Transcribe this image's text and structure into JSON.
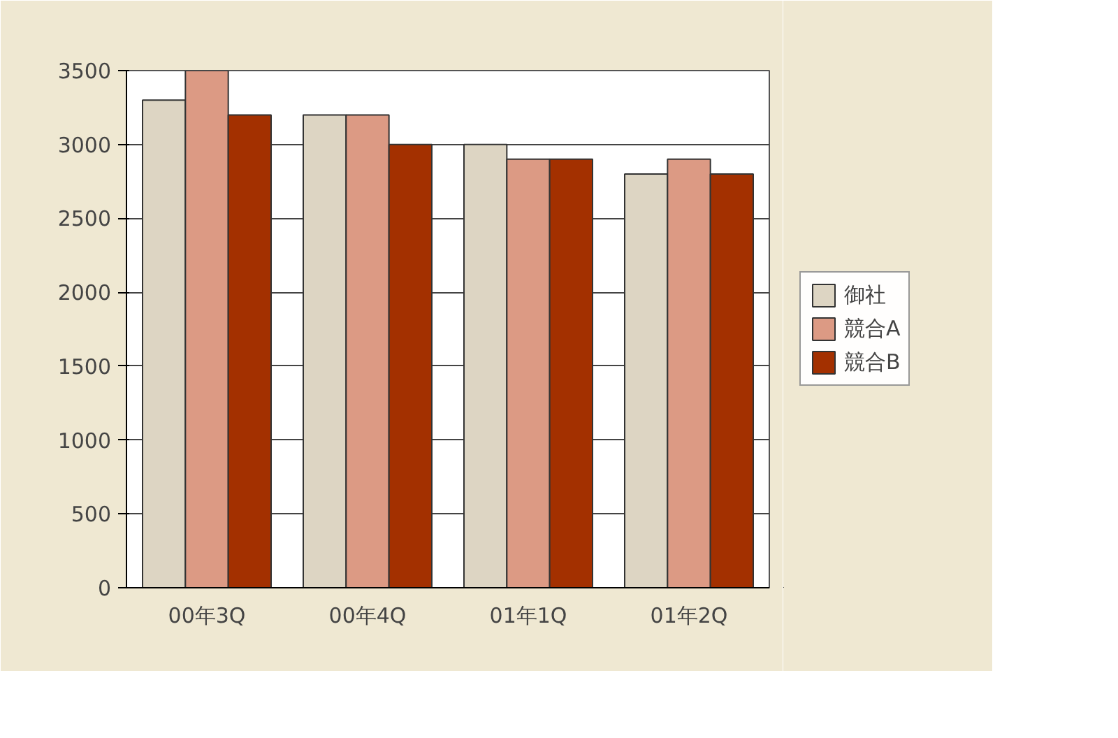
{
  "chart_data": {
    "type": "bar",
    "categories": [
      "00年3Q",
      "00年4Q",
      "01年1Q",
      "01年2Q"
    ],
    "series": [
      {
        "name": "御社",
        "color": "#ddd5c3",
        "values": [
          3300,
          3200,
          3000,
          2800
        ]
      },
      {
        "name": "競合A",
        "color": "#dc9a84",
        "values": [
          3500,
          3200,
          2900,
          2900
        ]
      },
      {
        "name": "競合B",
        "color": "#a33000",
        "values": [
          3200,
          3000,
          2900,
          2800
        ]
      }
    ],
    "ylim": [
      0,
      3500
    ],
    "yticks": [
      0,
      500,
      1000,
      1500,
      2000,
      2500,
      3000,
      3500
    ],
    "grid": "y",
    "legend": "right"
  }
}
